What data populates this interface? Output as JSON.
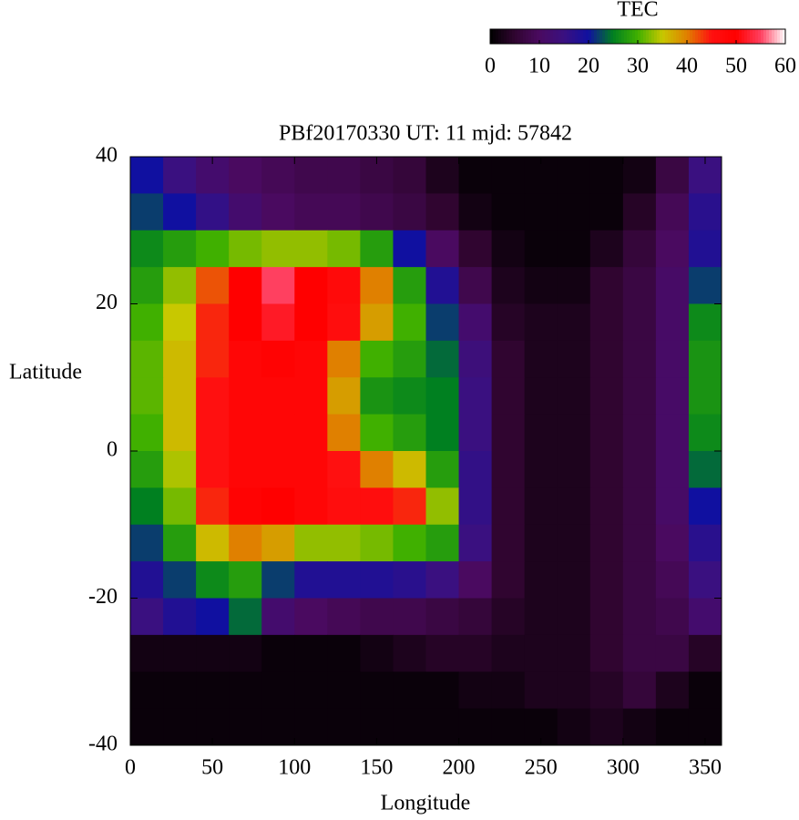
{
  "chart_data": {
    "type": "heatmap",
    "title": "PBf20170330  UT: 11  mjd: 57842",
    "xlabel": "Longitude",
    "ylabel": "Latitude",
    "colorbar_label": "TEC",
    "x": [
      10,
      30,
      50,
      70,
      90,
      110,
      130,
      150,
      170,
      190,
      210,
      230,
      250,
      270,
      290,
      310,
      330,
      350
    ],
    "y": [
      37.5,
      32.5,
      27.5,
      22.5,
      17.5,
      12.5,
      7.5,
      2.5,
      -2.5,
      -7.5,
      -12.5,
      -17.5,
      -22.5,
      -27.5,
      -32.5,
      -37.5
    ],
    "z": [
      [
        20,
        15,
        12,
        10,
        9,
        8,
        8,
        7,
        6,
        3,
        1,
        1,
        1,
        1,
        1,
        2,
        7,
        15
      ],
      [
        22,
        20,
        16,
        12,
        10,
        9,
        9,
        8,
        7,
        5,
        2,
        1,
        1,
        1,
        1,
        4,
        9,
        17
      ],
      [
        26,
        28,
        30,
        32,
        33,
        33,
        32,
        28,
        20,
        10,
        5,
        2,
        1,
        1,
        3,
        6,
        10,
        18
      ],
      [
        28,
        33,
        42,
        50,
        55,
        50,
        47,
        40,
        28,
        18,
        8,
        3,
        2,
        2,
        5,
        7,
        11,
        22
      ],
      [
        30,
        35,
        44,
        50,
        52,
        50,
        46,
        38,
        30,
        22,
        12,
        4,
        3,
        3,
        5,
        7,
        11,
        26
      ],
      [
        31,
        36,
        44,
        48,
        49,
        48,
        40,
        30,
        28,
        24,
        14,
        5,
        3,
        3,
        5,
        7,
        11,
        27
      ],
      [
        31,
        36,
        45,
        48,
        48,
        48,
        38,
        27,
        26,
        25,
        15,
        5,
        3,
        3,
        5,
        7,
        11,
        27
      ],
      [
        30,
        36,
        45,
        48,
        48,
        48,
        40,
        30,
        28,
        25,
        15,
        5,
        3,
        3,
        5,
        7,
        11,
        26
      ],
      [
        28,
        34,
        45,
        48,
        48,
        48,
        45,
        40,
        36,
        28,
        16,
        5,
        3,
        3,
        5,
        7,
        11,
        24
      ],
      [
        25,
        32,
        44,
        49,
        50,
        48,
        46,
        46,
        44,
        33,
        16,
        5,
        3,
        3,
        5,
        7,
        11,
        20
      ],
      [
        22,
        28,
        36,
        40,
        38,
        33,
        33,
        32,
        30,
        28,
        15,
        5,
        3,
        3,
        5,
        7,
        10,
        17
      ],
      [
        18,
        22,
        26,
        28,
        22,
        18,
        18,
        18,
        17,
        15,
        10,
        5,
        3,
        3,
        5,
        7,
        9,
        15
      ],
      [
        15,
        18,
        20,
        24,
        12,
        10,
        9,
        8,
        8,
        7,
        6,
        4,
        3,
        3,
        5,
        7,
        8,
        12
      ],
      [
        2,
        2,
        2,
        2,
        1,
        1,
        1,
        2,
        3,
        4,
        4,
        3,
        3,
        3,
        5,
        7,
        7,
        4
      ],
      [
        1,
        1,
        1,
        1,
        1,
        1,
        1,
        1,
        1,
        1,
        2,
        2,
        3,
        3,
        4,
        6,
        3,
        1
      ],
      [
        1,
        1,
        1,
        1,
        1,
        1,
        1,
        1,
        1,
        1,
        1,
        1,
        1,
        2,
        3,
        2,
        1,
        1
      ]
    ],
    "xlim": [
      0,
      360
    ],
    "xticks": [
      0,
      50,
      100,
      150,
      200,
      250,
      300,
      350
    ],
    "ylim": [
      -40,
      40
    ],
    "yticks": [
      -40,
      -20,
      0,
      20,
      40
    ],
    "zlim": [
      0,
      60
    ],
    "zticks": [
      0,
      10,
      20,
      30,
      40,
      50,
      60
    ],
    "colormap": [
      "#000000",
      "#300530",
      "#4a0a60",
      "#3a1080",
      "#1010a0",
      "#008020",
      "#40b000",
      "#c8c800",
      "#e08000",
      "#ff1010",
      "#ff0000",
      "#ff4060",
      "#ffffff"
    ]
  }
}
